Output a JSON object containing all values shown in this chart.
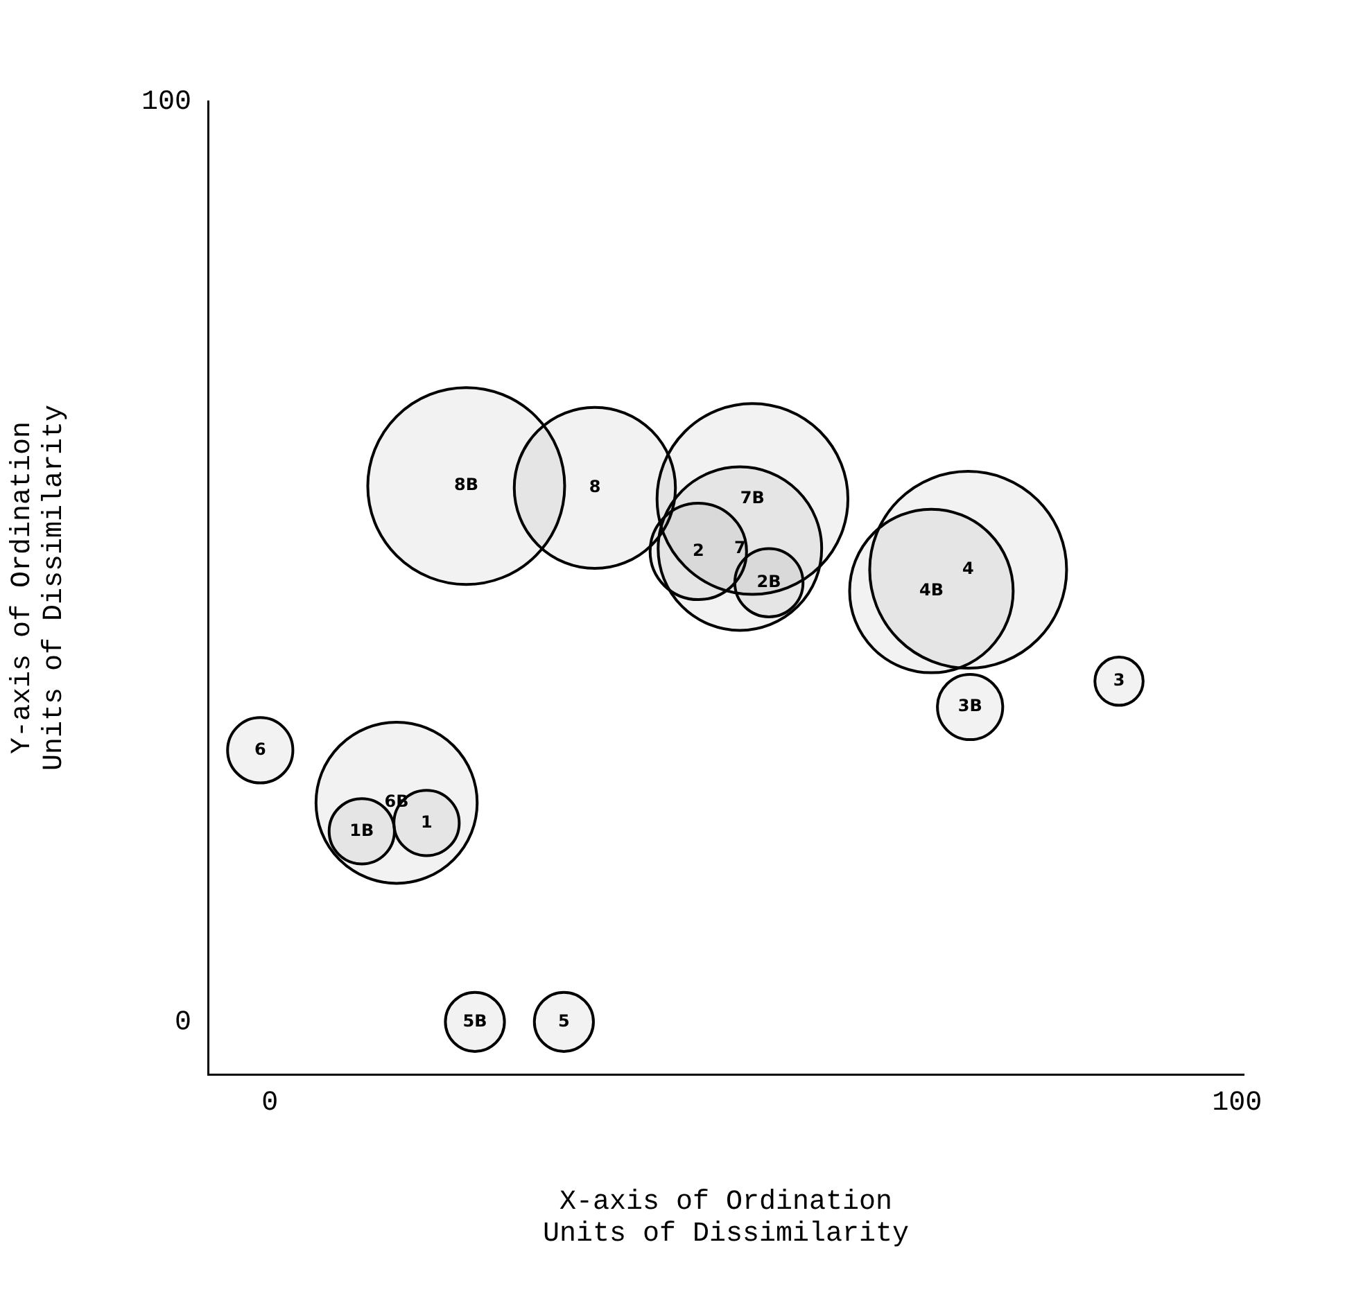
{
  "chart_data": {
    "type": "bubble",
    "xlabel": "X-axis of Ordination\nUnits of Dissimilarity",
    "ylabel": "Y-axis of Ordination\nUnits of Dissimilarity",
    "series": [
      {
        "name": "8B",
        "color": "#000000",
        "x": [
          20.3
        ],
        "values": [
          58.2
        ],
        "sizes": [
          1.0
        ]
      },
      {
        "name": "8",
        "color": "#000000",
        "x": [
          33.6
        ],
        "values": [
          58.0
        ],
        "sizes": [
          0.67
        ]
      },
      {
        "name": "7B",
        "color": "#000000",
        "x": [
          49.9
        ],
        "values": [
          56.8
        ],
        "sizes": [
          0.94
        ]
      },
      {
        "name": "7",
        "color": "#000000",
        "x": [
          48.6
        ],
        "values": [
          51.4
        ],
        "sizes": [
          0.69
        ]
      },
      {
        "name": "2",
        "color": "#000000",
        "x": [
          44.3
        ],
        "values": [
          51.1
        ],
        "sizes": [
          0.24
        ]
      },
      {
        "name": "2B",
        "color": "#000000",
        "x": [
          51.6
        ],
        "values": [
          47.7
        ],
        "sizes": [
          0.12
        ]
      },
      {
        "name": "4",
        "color": "#000000",
        "x": [
          72.2
        ],
        "values": [
          49.1
        ],
        "sizes": [
          1.0
        ]
      },
      {
        "name": "4B",
        "color": "#000000",
        "x": [
          68.4
        ],
        "values": [
          46.8
        ],
        "sizes": [
          0.69
        ]
      },
      {
        "name": "3",
        "color": "#000000",
        "x": [
          87.8
        ],
        "values": [
          37.0
        ],
        "sizes": [
          0.06
        ]
      },
      {
        "name": "3B",
        "color": "#000000",
        "x": [
          72.4
        ],
        "values": [
          34.2
        ],
        "sizes": [
          0.11
        ]
      },
      {
        "name": "6",
        "color": "#000000",
        "x": [
          -1.0
        ],
        "values": [
          29.5
        ],
        "sizes": [
          0.11
        ]
      },
      {
        "name": "6B",
        "color": "#000000",
        "x": [
          13.1
        ],
        "values": [
          23.8
        ],
        "sizes": [
          0.67
        ]
      },
      {
        "name": "1",
        "color": "#000000",
        "x": [
          16.2
        ],
        "values": [
          21.6
        ],
        "sizes": [
          0.11
        ]
      },
      {
        "name": "1B",
        "color": "#000000",
        "x": [
          9.5
        ],
        "values": [
          20.7
        ],
        "sizes": [
          0.11
        ]
      },
      {
        "name": "5B",
        "color": "#000000",
        "x": [
          21.2
        ],
        "values": [
          0
        ],
        "sizes": [
          0.09
        ]
      },
      {
        "name": "5",
        "color": "#000000",
        "x": [
          30.4
        ],
        "values": [
          0
        ],
        "sizes": [
          0.09
        ]
      }
    ],
    "xlim": [
      -6.4,
      100.7
    ],
    "ylim": [
      -5.7,
      100
    ],
    "xticks": [
      0,
      100
    ],
    "yticks": [
      0,
      100
    ],
    "grid": false,
    "legend": false
  }
}
